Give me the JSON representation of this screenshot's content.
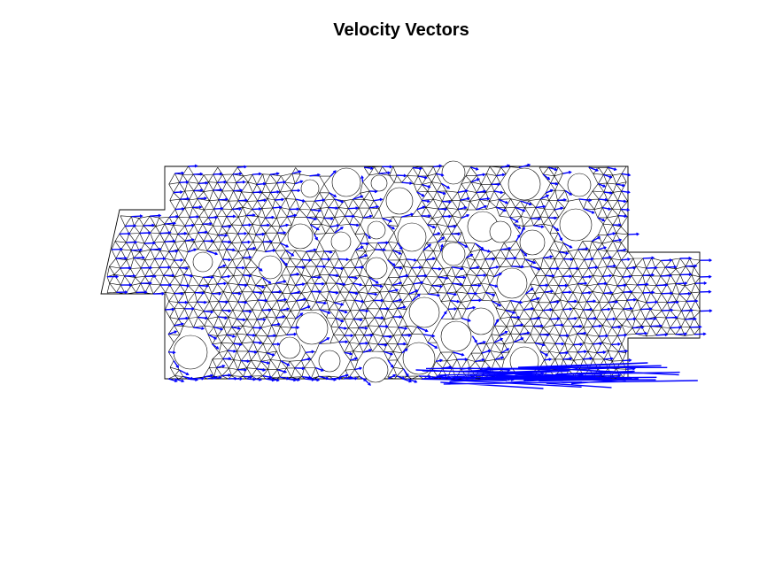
{
  "figure": {
    "title": "Velocity Vectors"
  },
  "mesh": {
    "kind": "triangular finite-element mesh with circular holes",
    "edge_color": "#000000"
  },
  "vectors": {
    "color": "#0000ff",
    "shows": "velocity vectors"
  },
  "holes_count": 30
}
